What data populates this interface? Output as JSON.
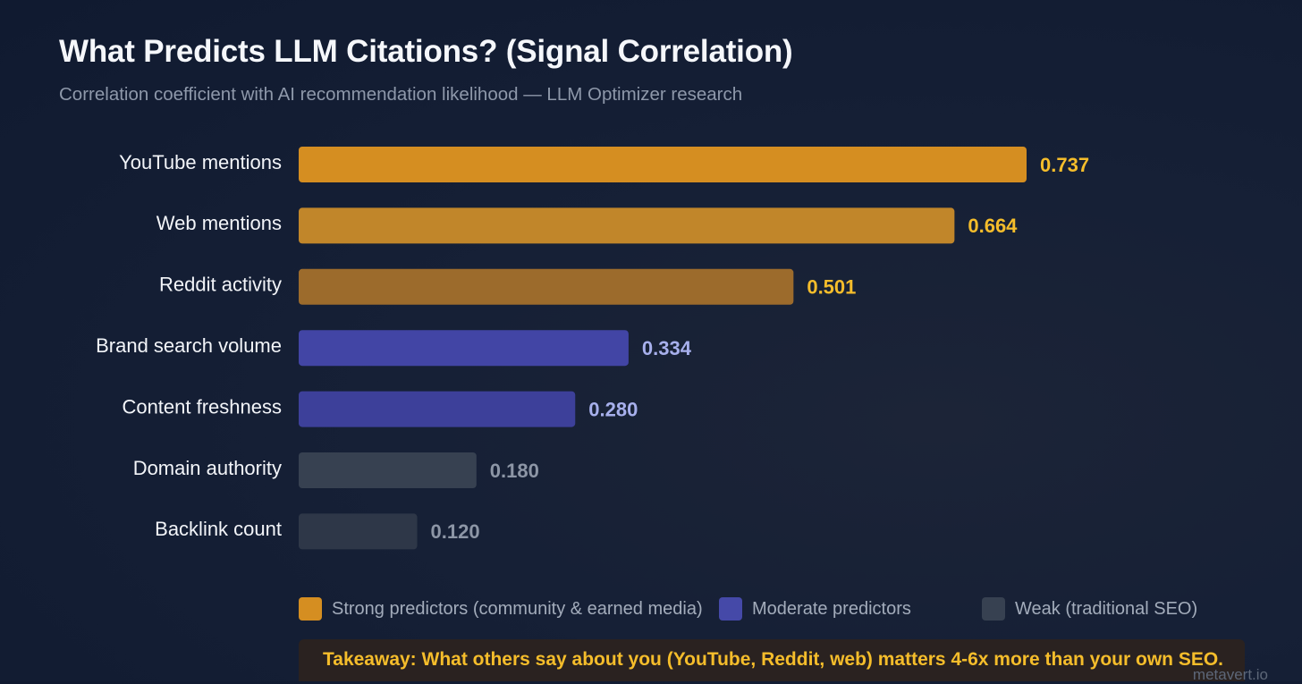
{
  "chart_data": {
    "type": "bar",
    "orientation": "horizontal",
    "title": "What Predicts LLM Citations? (Signal Correlation)",
    "subtitle": "Correlation coefficient with AI recommendation likelihood — LLM Optimizer research",
    "categories": [
      "YouTube mentions",
      "Web mentions",
      "Reddit activity",
      "Brand search volume",
      "Content freshness",
      "Domain authority",
      "Backlink count"
    ],
    "values": [
      0.737,
      0.664,
      0.501,
      0.334,
      0.28,
      0.18,
      0.12
    ],
    "data_labels": [
      "0.737",
      "0.664",
      "0.501",
      "0.334",
      "0.280",
      "0.180",
      "0.120"
    ],
    "groups": [
      "strong",
      "strong",
      "strong",
      "moderate",
      "moderate",
      "weak",
      "weak"
    ],
    "bar_colors": [
      "#d58e21",
      "#c1862a",
      "#9c6b2c",
      "#4245a5",
      "#3d409a",
      "#374151",
      "#2e3748"
    ],
    "label_colors": [
      "#f5bd2b",
      "#f5bd2b",
      "#f5bd2b",
      "#a7b0ec",
      "#a7b0ec",
      "#8d96a6",
      "#8d96a6"
    ],
    "xlim": [
      0,
      0.737
    ],
    "grid": false,
    "legend": {
      "position": "bottom",
      "items": [
        {
          "label": "Strong predictors (community & earned media)",
          "color": "#d58e21"
        },
        {
          "label": "Moderate predictors",
          "color": "#4549a8"
        },
        {
          "label": "Weak (traditional SEO)",
          "color": "#374151"
        }
      ]
    },
    "annotation": "Takeaway: What others say about you (YouTube, Reddit, web) matters 4-6x more than your own SEO.",
    "watermark": "metavert.io"
  }
}
